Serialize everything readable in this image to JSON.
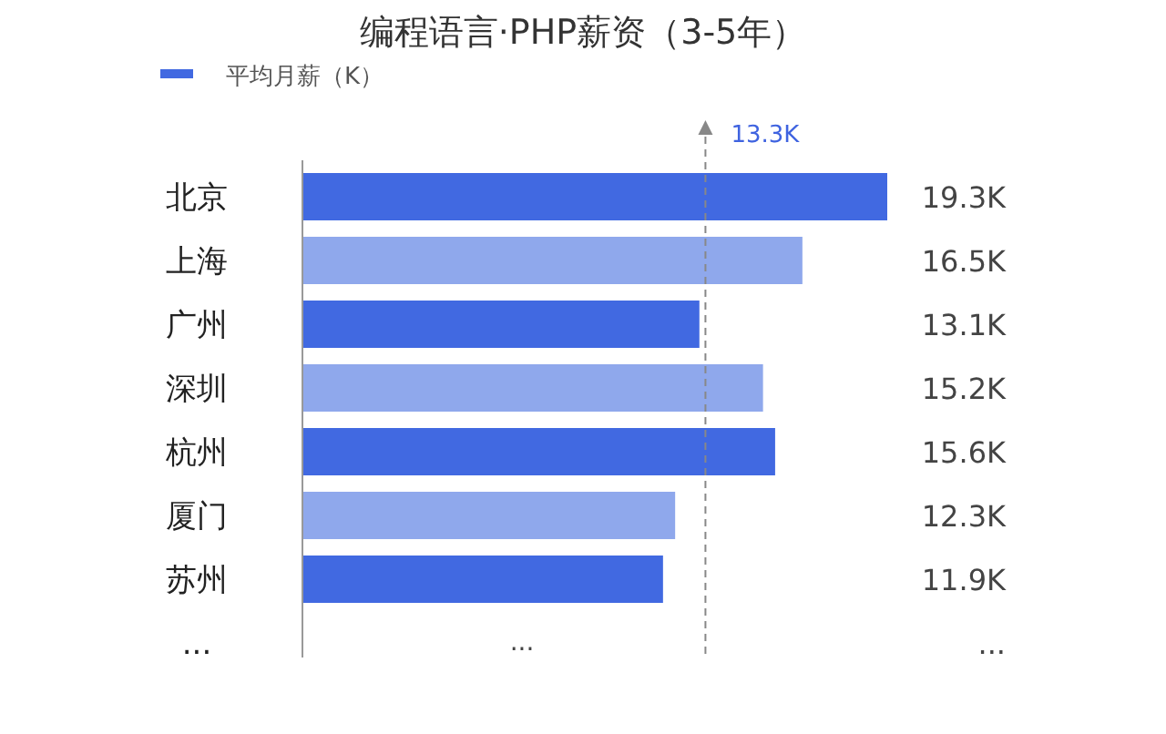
{
  "chart_data": {
    "type": "bar",
    "orientation": "horizontal",
    "title": "编程语言·PHP薪资（3-5年）",
    "categories": [
      "北京",
      "上海",
      "广州",
      "深圳",
      "杭州",
      "厦门",
      "苏州",
      "..."
    ],
    "series": [
      {
        "name": "平均月薪（K）",
        "color": "#4169e1",
        "values": [
          19.3,
          16.5,
          13.1,
          15.2,
          15.6,
          12.3,
          11.9,
          null
        ],
        "colors": [
          "#4169e1",
          "#8fa8ec",
          "#4169e1",
          "#8fa8ec",
          "#4169e1",
          "#8fa8ec",
          "#4169e1",
          null
        ],
        "value_labels": [
          "19.3K",
          "16.5K",
          "13.1K",
          "15.2K",
          "15.6K",
          "12.3K",
          "11.9K",
          "..."
        ]
      }
    ],
    "ref_lines": [
      {
        "axis": "x",
        "value": 13.3,
        "label": "13.3K",
        "color": "#888888",
        "line_style": "dashed"
      }
    ],
    "annotations": [
      "..."
    ],
    "legend": "top left"
  }
}
